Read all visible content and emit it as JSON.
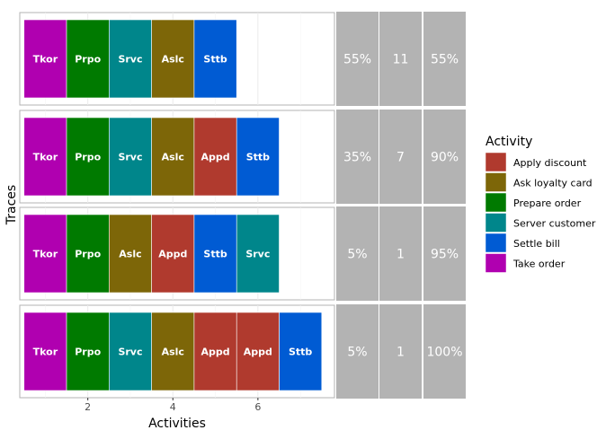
{
  "chart_data": {
    "type": "trace-explorer",
    "xlabel": "Activities",
    "ylabel": "Traces",
    "x_ticks": [
      2,
      4,
      6
    ],
    "xlim": [
      0.4,
      7.8
    ],
    "legend": {
      "title": "Activity",
      "position": "right",
      "items": [
        {
          "name": "Apply discount",
          "color": "#B03A2E"
        },
        {
          "name": "Ask loyalty card",
          "color": "#7D6608"
        },
        {
          "name": "Prepare order",
          "color": "#007A00"
        },
        {
          "name": "Server customer",
          "color": "#00868B"
        },
        {
          "name": "Settle bill",
          "color": "#005BD3"
        },
        {
          "name": "Take order",
          "color": "#B000B0"
        }
      ]
    },
    "abbreviations": {
      "Apply discount": "Appd",
      "Ask loyalty card": "Aslc",
      "Prepare order": "Prpo",
      "Server customer": "Srvc",
      "Settle bill": "Sttb",
      "Take order": "Tkor"
    },
    "traces": [
      {
        "activities": [
          "Take order",
          "Prepare order",
          "Server customer",
          "Ask loyalty card",
          "Settle bill"
        ],
        "relative_frequency": "55%",
        "absolute_frequency": "11",
        "cumulative": "55%"
      },
      {
        "activities": [
          "Take order",
          "Prepare order",
          "Server customer",
          "Ask loyalty card",
          "Apply discount",
          "Settle bill"
        ],
        "relative_frequency": "35%",
        "absolute_frequency": "7",
        "cumulative": "90%"
      },
      {
        "activities": [
          "Take order",
          "Prepare order",
          "Ask loyalty card",
          "Apply discount",
          "Settle bill",
          "Server customer"
        ],
        "relative_frequency": "5%",
        "absolute_frequency": "1",
        "cumulative": "95%"
      },
      {
        "activities": [
          "Take order",
          "Prepare order",
          "Server customer",
          "Ask loyalty card",
          "Apply discount",
          "Apply discount",
          "Settle bill"
        ],
        "relative_frequency": "5%",
        "absolute_frequency": "1",
        "cumulative": "100%"
      }
    ],
    "colors": {
      "panel_border": "#B3B3B3",
      "grid": "#EBEBEB",
      "stat_bg": "#B3B3B3",
      "text_light": "#FFFFFF"
    }
  }
}
